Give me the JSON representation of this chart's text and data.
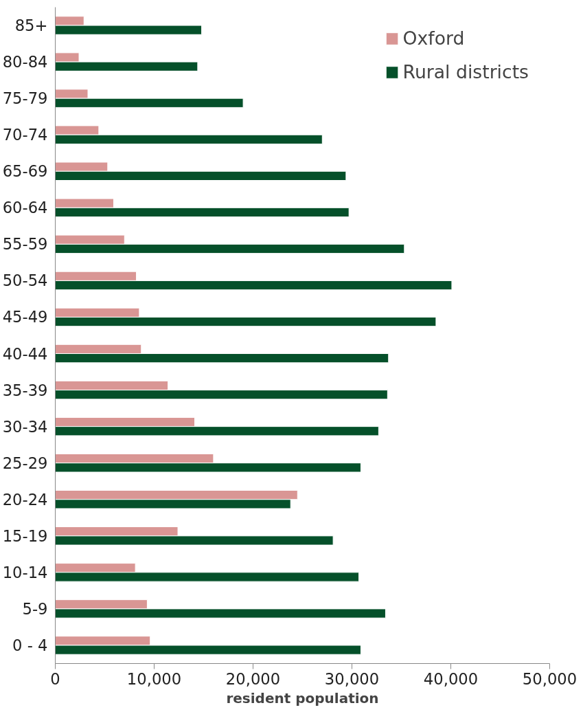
{
  "chart_data": {
    "type": "bar",
    "orientation": "horizontal",
    "xlabel": "resident population",
    "categories": [
      "85+",
      "80-84",
      "75-79",
      "70-74",
      "65-69",
      "60-64",
      "55-59",
      "50-54",
      "45-49",
      "40-44",
      "35-39",
      "30-34",
      "25-29",
      "20-24",
      "15-19",
      "10-14",
      "5-9",
      "0 - 4"
    ],
    "series": [
      {
        "name": "Oxford",
        "color": "#d99694",
        "values": [
          2900,
          2400,
          3300,
          4400,
          5300,
          5900,
          7000,
          8200,
          8500,
          8700,
          11400,
          14100,
          16000,
          24500,
          12400,
          8100,
          9300,
          9600
        ]
      },
      {
        "name": "Rural districts",
        "color": "#05502a",
        "values": [
          14800,
          14400,
          19000,
          27000,
          29400,
          29700,
          35300,
          40100,
          38500,
          33700,
          33600,
          32700,
          30900,
          23800,
          28100,
          30700,
          33400,
          30900
        ]
      }
    ],
    "xlim": [
      0,
      50000
    ],
    "xticks": [
      0,
      {
        "value": 10000,
        "label": "10,000"
      },
      {
        "value": 20000,
        "label": "20,000"
      },
      {
        "value": 30000,
        "label": "30,000"
      },
      {
        "value": 40000,
        "label": "40,000"
      },
      {
        "value": 50000,
        "label": "50,000"
      }
    ],
    "grid": false,
    "legend": "top right"
  }
}
